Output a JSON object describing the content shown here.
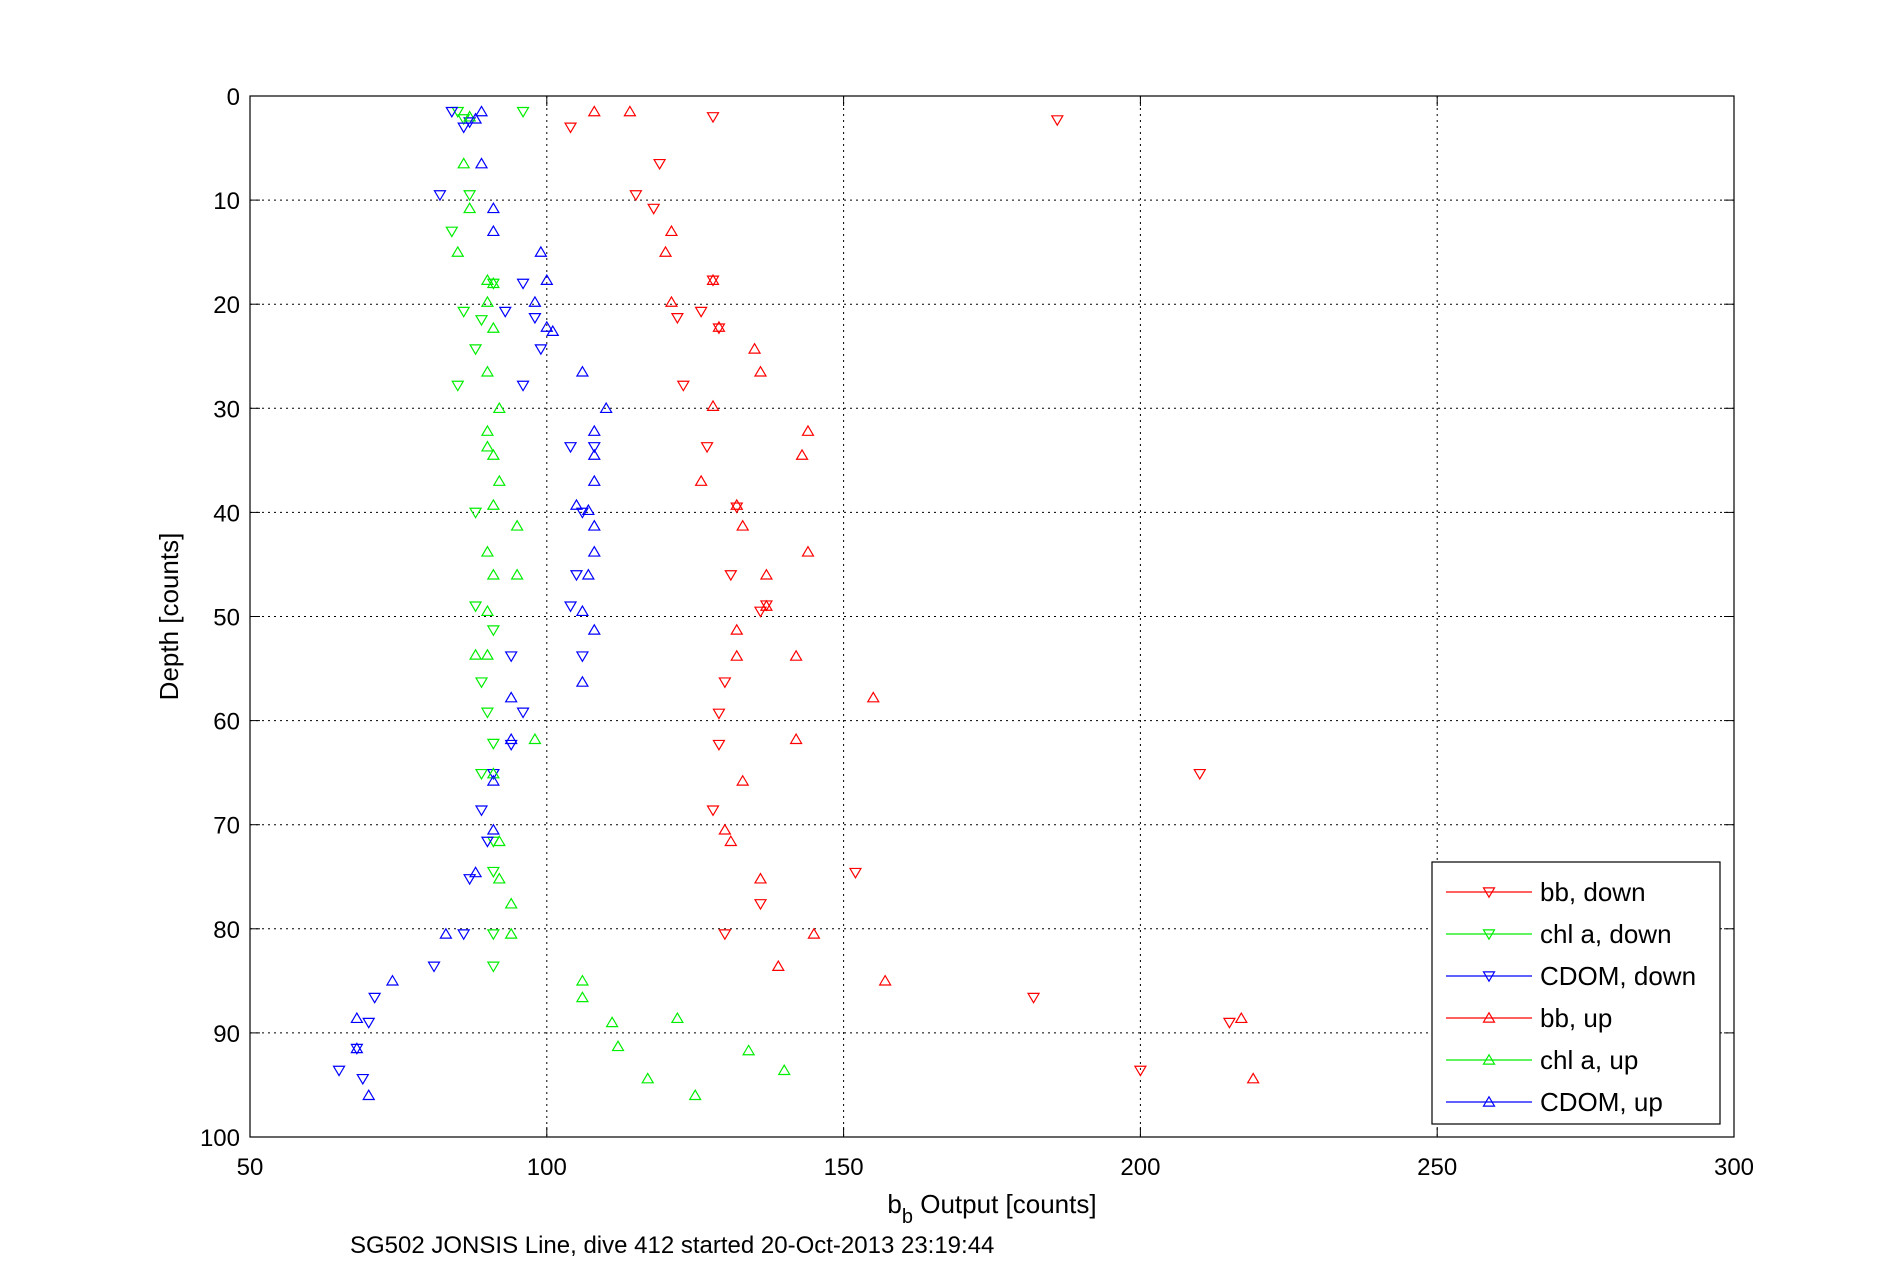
{
  "chart_data": {
    "type": "scatter",
    "xlabel_main": "b",
    "xlabel_sub": "b",
    "xlabel_rest": " Output [counts]",
    "ylabel": "Depth [counts]",
    "caption": "SG502 JONSIS Line, dive 412 started 20-Oct-2013 23:19:44",
    "xlim": [
      50,
      300
    ],
    "ylim": [
      0,
      100
    ],
    "y_reversed": true,
    "grid": true,
    "legend_position": "bottom-right",
    "x_ticks": [
      50,
      100,
      150,
      200,
      250,
      300
    ],
    "y_ticks": [
      0,
      10,
      20,
      30,
      40,
      50,
      60,
      70,
      80,
      90,
      100
    ],
    "series": [
      {
        "name": "bb, down",
        "color": "#ff0000",
        "marker": "triangle-down",
        "points": [
          [
            186,
            2.3
          ],
          [
            104,
            3
          ],
          [
            128,
            2
          ],
          [
            119,
            6.5
          ],
          [
            115,
            9.5
          ],
          [
            118,
            10.8
          ],
          [
            128,
            17.7
          ],
          [
            126,
            20.7
          ],
          [
            122,
            21.3
          ],
          [
            129,
            22.3
          ],
          [
            123,
            27.8
          ],
          [
            127,
            33.7
          ],
          [
            132,
            39.5
          ],
          [
            131,
            46
          ],
          [
            137,
            48.9
          ],
          [
            136,
            49.5
          ],
          [
            130,
            56.3
          ],
          [
            129,
            59.3
          ],
          [
            129,
            62.3
          ],
          [
            210,
            65.1
          ],
          [
            128,
            68.6
          ],
          [
            152,
            74.6
          ],
          [
            136,
            77.6
          ],
          [
            130,
            80.5
          ],
          [
            182,
            86.6
          ],
          [
            215,
            89
          ],
          [
            200,
            93.6
          ]
        ]
      },
      {
        "name": "chl a, down",
        "color": "#00ee00",
        "marker": "triangle-down",
        "points": [
          [
            85,
            1.5
          ],
          [
            96,
            1.5
          ],
          [
            86,
            2.2
          ],
          [
            87,
            9.5
          ],
          [
            84,
            13
          ],
          [
            89,
            21.5
          ],
          [
            86,
            20.7
          ],
          [
            88,
            24.3
          ],
          [
            85,
            27.8
          ],
          [
            91,
            18
          ],
          [
            88,
            40
          ],
          [
            88,
            49
          ],
          [
            91,
            51.3
          ],
          [
            89,
            56.3
          ],
          [
            90,
            59.2
          ],
          [
            91,
            62.2
          ],
          [
            89,
            65.1
          ],
          [
            91,
            71.6
          ],
          [
            91,
            74.5
          ],
          [
            91,
            80.5
          ],
          [
            91,
            83.6
          ]
        ]
      },
      {
        "name": "CDOM, down",
        "color": "#0000ff",
        "marker": "triangle-down",
        "points": [
          [
            84,
            1.5
          ],
          [
            87,
            2.5
          ],
          [
            86,
            3
          ],
          [
            82,
            9.5
          ],
          [
            96,
            18
          ],
          [
            93,
            20.7
          ],
          [
            98,
            21.3
          ],
          [
            99,
            24.3
          ],
          [
            96,
            27.8
          ],
          [
            104,
            33.7
          ],
          [
            108,
            33.7
          ],
          [
            106,
            40
          ],
          [
            104,
            49
          ],
          [
            105,
            46
          ],
          [
            106,
            53.8
          ],
          [
            94,
            53.8
          ],
          [
            96,
            59.2
          ],
          [
            94,
            62.3
          ],
          [
            91,
            65.1
          ],
          [
            89,
            68.6
          ],
          [
            90,
            71.6
          ],
          [
            87,
            75.2
          ],
          [
            86,
            80.5
          ],
          [
            81,
            83.6
          ],
          [
            71,
            86.6
          ],
          [
            70,
            89
          ],
          [
            68,
            91.5
          ],
          [
            65,
            93.6
          ],
          [
            69,
            94.4
          ]
        ]
      },
      {
        "name": "bb, up",
        "color": "#ff0000",
        "marker": "triangle-up",
        "points": [
          [
            108,
            1.5
          ],
          [
            114,
            1.5
          ],
          [
            128,
            17.7
          ],
          [
            121,
            13
          ],
          [
            120,
            15
          ],
          [
            121,
            19.8
          ],
          [
            129,
            22.2
          ],
          [
            135,
            24.3
          ],
          [
            136,
            26.5
          ],
          [
            128,
            29.8
          ],
          [
            144,
            32.2
          ],
          [
            143,
            34.5
          ],
          [
            126,
            37
          ],
          [
            132,
            39.3
          ],
          [
            133,
            41.3
          ],
          [
            144,
            43.8
          ],
          [
            137,
            46
          ],
          [
            137,
            49
          ],
          [
            132,
            51.3
          ],
          [
            132,
            53.8
          ],
          [
            142,
            53.8
          ],
          [
            155,
            57.8
          ],
          [
            142,
            61.8
          ],
          [
            133,
            65.8
          ],
          [
            130,
            70.5
          ],
          [
            131,
            71.6
          ],
          [
            136,
            75.2
          ],
          [
            145,
            80.5
          ],
          [
            139,
            83.6
          ],
          [
            157,
            85
          ],
          [
            217,
            88.6
          ],
          [
            219,
            94.4
          ]
        ]
      },
      {
        "name": "chl a, up",
        "color": "#00ee00",
        "marker": "triangle-up",
        "points": [
          [
            87,
            2
          ],
          [
            86,
            6.5
          ],
          [
            87,
            10.8
          ],
          [
            85,
            15
          ],
          [
            90,
            17.7
          ],
          [
            91,
            18
          ],
          [
            90,
            19.8
          ],
          [
            91,
            22.3
          ],
          [
            90,
            26.5
          ],
          [
            92,
            30
          ],
          [
            90,
            32.2
          ],
          [
            90,
            33.7
          ],
          [
            91,
            34.5
          ],
          [
            92,
            37
          ],
          [
            91,
            39.3
          ],
          [
            95,
            41.3
          ],
          [
            90,
            43.8
          ],
          [
            95,
            46
          ],
          [
            91,
            46
          ],
          [
            90,
            49.5
          ],
          [
            88,
            53.7
          ],
          [
            90,
            53.7
          ],
          [
            98,
            61.8
          ],
          [
            91,
            65.1
          ],
          [
            92,
            71.6
          ],
          [
            92,
            75.2
          ],
          [
            94,
            77.6
          ],
          [
            94,
            80.5
          ],
          [
            106,
            85
          ],
          [
            106,
            86.6
          ],
          [
            111,
            89
          ],
          [
            122,
            88.6
          ],
          [
            112,
            91.3
          ],
          [
            134,
            91.7
          ],
          [
            140,
            93.6
          ],
          [
            117,
            94.4
          ],
          [
            125,
            96
          ]
        ]
      },
      {
        "name": "CDOM, up",
        "color": "#0000ff",
        "marker": "triangle-up",
        "points": [
          [
            89,
            1.5
          ],
          [
            88,
            2.2
          ],
          [
            89,
            6.5
          ],
          [
            91,
            10.8
          ],
          [
            91,
            13
          ],
          [
            99,
            15
          ],
          [
            100,
            17.7
          ],
          [
            98,
            19.8
          ],
          [
            100,
            22.2
          ],
          [
            101,
            22.6
          ],
          [
            106,
            26.5
          ],
          [
            110,
            30
          ],
          [
            108,
            32.2
          ],
          [
            108,
            34.5
          ],
          [
            108,
            37
          ],
          [
            105,
            39.3
          ],
          [
            107,
            39.8
          ],
          [
            108,
            41.3
          ],
          [
            108,
            43.8
          ],
          [
            107,
            46
          ],
          [
            106,
            49.5
          ],
          [
            108,
            51.3
          ],
          [
            106,
            56.3
          ],
          [
            94,
            57.8
          ],
          [
            94,
            61.8
          ],
          [
            91,
            65.8
          ],
          [
            91,
            70.5
          ],
          [
            88,
            74.6
          ],
          [
            83,
            80.5
          ],
          [
            74,
            85
          ],
          [
            68,
            88.6
          ],
          [
            68,
            91.5
          ],
          [
            70,
            96
          ]
        ]
      }
    ]
  }
}
